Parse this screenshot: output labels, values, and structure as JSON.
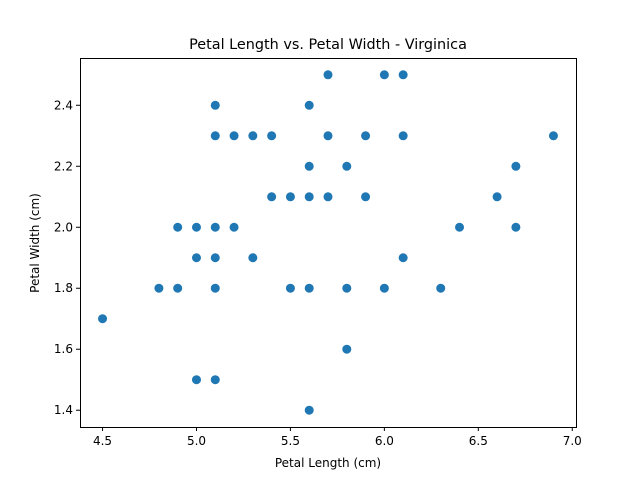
{
  "chart_data": {
    "type": "scatter",
    "title": "Petal Length vs. Petal Width - Virginica",
    "xlabel": "Petal Length (cm)",
    "ylabel": "Petal Width (cm)",
    "xlim": [
      4.38,
      7.02
    ],
    "ylim": [
      1.345,
      2.555
    ],
    "xticks": [
      "4.5",
      "5.0",
      "5.5",
      "6.0",
      "6.5",
      "7.0"
    ],
    "yticks": [
      "1.4",
      "1.6",
      "1.8",
      "2.0",
      "2.2",
      "2.4"
    ],
    "grid": false,
    "color": "#1f77b4",
    "series": [
      {
        "x": [
          5.7,
          6.0,
          6.1,
          5.1,
          5.6,
          5.1,
          5.2,
          5.3,
          5.4,
          5.7,
          5.9,
          6.1,
          6.9,
          5.6,
          5.8,
          6.7,
          5.4,
          5.5,
          5.6,
          5.7,
          5.9,
          6.6,
          4.9,
          5.0,
          5.1,
          5.2,
          6.4,
          6.7,
          5.0,
          5.1,
          5.3,
          6.1,
          4.8,
          4.9,
          5.1,
          5.5,
          5.6,
          5.8,
          6.0,
          6.3,
          4.5,
          5.8,
          5.0,
          5.1,
          5.6
        ],
        "y": [
          2.5,
          2.5,
          2.5,
          2.4,
          2.4,
          2.3,
          2.3,
          2.3,
          2.3,
          2.3,
          2.3,
          2.3,
          2.3,
          2.2,
          2.2,
          2.2,
          2.1,
          2.1,
          2.1,
          2.1,
          2.1,
          2.1,
          2.0,
          2.0,
          2.0,
          2.0,
          2.0,
          2.0,
          1.9,
          1.9,
          1.9,
          1.9,
          1.8,
          1.8,
          1.8,
          1.8,
          1.8,
          1.8,
          1.8,
          1.8,
          1.7,
          1.6,
          1.5,
          1.5,
          1.4
        ]
      }
    ]
  }
}
